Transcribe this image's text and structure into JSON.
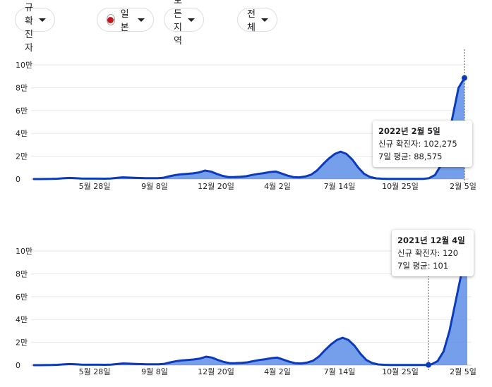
{
  "filters": {
    "metric": "신규 확진자",
    "country": "일본",
    "region": "모든 지역",
    "period": "전체"
  },
  "colors": {
    "line": "#0b3bb8",
    "fill": "#5d8ee8",
    "grid": "#e8e8e8",
    "flag_red": "#c4161c"
  },
  "chart_data": [
    {
      "type": "area",
      "y_ticks": [
        "10만",
        "8만",
        "6만",
        "4만",
        "2만",
        "0"
      ],
      "y_tick_values": [
        100000,
        80000,
        60000,
        40000,
        20000,
        0
      ],
      "x_ticks": [
        "5월 28일",
        "9월 8일",
        "12월 20일",
        "4월 2일",
        "7월 14일",
        "10월 25일",
        "2월 5일"
      ],
      "ylim": [
        0,
        105000
      ],
      "grid": true,
      "series": [
        {
          "values": [
            0,
            0,
            50,
            150,
            300,
            700,
            1000,
            800,
            500,
            400,
            400,
            350,
            300,
            500,
            1000,
            1500,
            1300,
            1100,
            900,
            800,
            750,
            800,
            1200,
            2500,
            3500,
            4200,
            4600,
            5000,
            5800,
            7400,
            6600,
            4500,
            2800,
            1700,
            1800,
            2000,
            2500,
            3600,
            4500,
            5200,
            6100,
            6600,
            4800,
            3000,
            1700,
            1500,
            2200,
            3800,
            7500,
            13000,
            18000,
            22000,
            24000,
            22000,
            17000,
            10000,
            4500,
            1800,
            600,
            300,
            200,
            150,
            130,
            120,
            110,
            100,
            200,
            800,
            3500,
            12000,
            30000,
            55000,
            80000,
            88575
          ]
        }
      ],
      "tooltip": {
        "date": "2022년 2월 5일",
        "new_cases": "신규 확진자: 102,275",
        "avg7": "7일 평균: 88,575"
      }
    },
    {
      "type": "area",
      "y_ticks": [
        "10만",
        "8만",
        "6만",
        "4만",
        "2만",
        "0"
      ],
      "y_tick_values": [
        100000,
        80000,
        60000,
        40000,
        20000,
        0
      ],
      "x_ticks": [
        "5월 28일",
        "9월 8일",
        "12월 20일",
        "4월 2일",
        "7월 14일",
        "10월 25일",
        "2월 5일"
      ],
      "ylim": [
        0,
        105000
      ],
      "grid": true,
      "series": [
        {
          "values": [
            0,
            0,
            50,
            150,
            300,
            700,
            1000,
            800,
            500,
            400,
            400,
            350,
            300,
            500,
            1000,
            1500,
            1300,
            1100,
            900,
            800,
            750,
            800,
            1200,
            2500,
            3500,
            4200,
            4600,
            5000,
            5800,
            7400,
            6600,
            4500,
            2800,
            1700,
            1800,
            2000,
            2500,
            3600,
            4500,
            5200,
            6100,
            6600,
            4800,
            3000,
            1700,
            1500,
            2200,
            3800,
            7500,
            13000,
            18000,
            22000,
            24000,
            22000,
            17000,
            10000,
            4500,
            1800,
            600,
            300,
            200,
            150,
            130,
            120,
            110,
            100,
            200,
            800,
            3500,
            12000,
            30000,
            55000,
            80000,
            100000
          ]
        }
      ],
      "tooltip": {
        "date": "2021년 12월 4일",
        "new_cases": "신규 확진자: 120",
        "avg7": "7일 평균: 101"
      }
    }
  ]
}
